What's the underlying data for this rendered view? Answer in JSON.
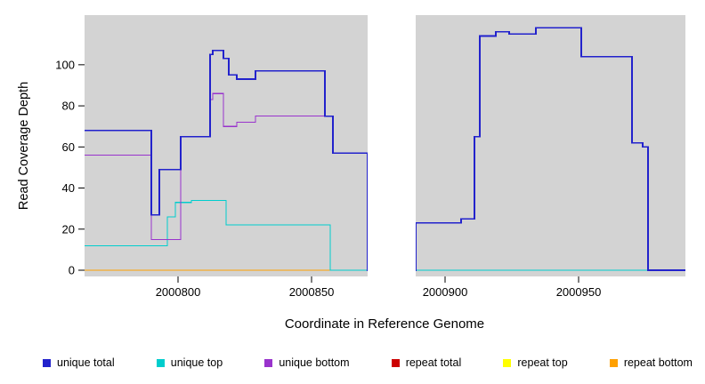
{
  "figure": {
    "background": "#ffffff",
    "panel_background": "#d3d3d3"
  },
  "chart_data": {
    "type": "line",
    "subtype": "step-coverage-plot",
    "title": "",
    "xlabel": "Coordinate in Reference Genome",
    "ylabel": "Read Coverage Depth",
    "xlim": [
      2000765,
      2000990
    ],
    "ylim": [
      0,
      122
    ],
    "x_ticks": [
      2000800,
      2000850,
      2000900,
      2000950
    ],
    "y_ticks": [
      0,
      20,
      40,
      60,
      80,
      100
    ],
    "grid": false,
    "panel_bg": "#d3d3d3",
    "gap_region": {
      "x_start": 2000871,
      "x_end": 2000889,
      "color": "#ffffff"
    },
    "series": [
      {
        "name": "repeat total",
        "color": "#cc0000",
        "width": 1.1,
        "points": [
          [
            2000765,
            0
          ],
          [
            2000990,
            0
          ]
        ]
      },
      {
        "name": "repeat top",
        "color": "#ffff00",
        "width": 1.1,
        "points": [
          [
            2000765,
            0
          ],
          [
            2000990,
            0
          ]
        ]
      },
      {
        "name": "repeat bottom",
        "color": "#ffa000",
        "width": 1.1,
        "points": [
          [
            2000765,
            0
          ],
          [
            2000990,
            0
          ]
        ]
      },
      {
        "name": "unique top",
        "color": "#00cdcd",
        "width": 1.1,
        "points": [
          [
            2000765,
            12
          ],
          [
            2000796,
            12
          ],
          [
            2000796,
            26
          ],
          [
            2000799,
            26
          ],
          [
            2000799,
            33
          ],
          [
            2000805,
            33
          ],
          [
            2000805,
            34
          ],
          [
            2000818,
            34
          ],
          [
            2000818,
            22
          ],
          [
            2000857,
            22
          ],
          [
            2000857,
            0
          ],
          [
            2000990,
            0
          ]
        ]
      },
      {
        "name": "unique bottom",
        "color": "#9933cc",
        "width": 1.1,
        "points": [
          [
            2000765,
            56
          ],
          [
            2000790,
            56
          ],
          [
            2000790,
            15
          ],
          [
            2000801,
            15
          ],
          [
            2000801,
            65
          ],
          [
            2000812,
            65
          ],
          [
            2000812,
            83
          ],
          [
            2000813,
            83
          ],
          [
            2000813,
            86
          ],
          [
            2000817,
            86
          ],
          [
            2000817,
            70
          ],
          [
            2000822,
            70
          ],
          [
            2000822,
            72
          ],
          [
            2000829,
            72
          ],
          [
            2000829,
            75
          ],
          [
            2000855,
            75
          ],
          [
            2000855,
            75
          ],
          [
            2000858,
            75
          ],
          [
            2000858,
            57
          ],
          [
            2000871,
            57
          ],
          [
            2000871,
            0
          ],
          [
            2000889,
            0
          ],
          [
            2000889,
            23
          ],
          [
            2000906,
            23
          ],
          [
            2000906,
            25
          ],
          [
            2000911,
            25
          ],
          [
            2000911,
            65
          ],
          [
            2000913,
            65
          ],
          [
            2000913,
            114
          ],
          [
            2000919,
            114
          ],
          [
            2000919,
            116
          ],
          [
            2000924,
            116
          ],
          [
            2000924,
            115
          ],
          [
            2000934,
            115
          ],
          [
            2000934,
            118
          ],
          [
            2000951,
            118
          ],
          [
            2000951,
            104
          ],
          [
            2000970,
            104
          ],
          [
            2000970,
            62
          ],
          [
            2000974,
            62
          ],
          [
            2000974,
            60
          ],
          [
            2000976,
            60
          ],
          [
            2000976,
            0
          ],
          [
            2000990,
            0
          ]
        ]
      },
      {
        "name": "unique total",
        "color": "#2222cc",
        "width": 1.6,
        "points": [
          [
            2000765,
            68
          ],
          [
            2000790,
            68
          ],
          [
            2000790,
            27
          ],
          [
            2000793,
            27
          ],
          [
            2000793,
            49
          ],
          [
            2000801,
            49
          ],
          [
            2000801,
            65
          ],
          [
            2000812,
            65
          ],
          [
            2000812,
            105
          ],
          [
            2000813,
            105
          ],
          [
            2000813,
            107
          ],
          [
            2000817,
            107
          ],
          [
            2000817,
            103
          ],
          [
            2000819,
            103
          ],
          [
            2000819,
            95
          ],
          [
            2000822,
            95
          ],
          [
            2000822,
            93
          ],
          [
            2000829,
            93
          ],
          [
            2000829,
            97
          ],
          [
            2000855,
            97
          ],
          [
            2000855,
            75
          ],
          [
            2000858,
            75
          ],
          [
            2000858,
            57
          ],
          [
            2000871,
            57
          ],
          [
            2000871,
            0
          ],
          [
            2000889,
            0
          ],
          [
            2000889,
            23
          ],
          [
            2000906,
            23
          ],
          [
            2000906,
            25
          ],
          [
            2000911,
            25
          ],
          [
            2000911,
            65
          ],
          [
            2000913,
            65
          ],
          [
            2000913,
            114
          ],
          [
            2000919,
            114
          ],
          [
            2000919,
            116
          ],
          [
            2000924,
            116
          ],
          [
            2000924,
            115
          ],
          [
            2000934,
            115
          ],
          [
            2000934,
            118
          ],
          [
            2000951,
            118
          ],
          [
            2000951,
            104
          ],
          [
            2000970,
            104
          ],
          [
            2000970,
            62
          ],
          [
            2000974,
            62
          ],
          [
            2000974,
            60
          ],
          [
            2000976,
            60
          ],
          [
            2000976,
            0
          ],
          [
            2000990,
            0
          ]
        ]
      }
    ],
    "legend": {
      "position": "bottom",
      "items": [
        {
          "label": "unique total",
          "color": "#2222cc"
        },
        {
          "label": "unique top",
          "color": "#00cdcd"
        },
        {
          "label": "unique bottom",
          "color": "#9933cc"
        },
        {
          "label": "repeat total",
          "color": "#cc0000"
        },
        {
          "label": "repeat top",
          "color": "#ffff00"
        },
        {
          "label": "repeat bottom",
          "color": "#ffa000"
        }
      ]
    }
  }
}
